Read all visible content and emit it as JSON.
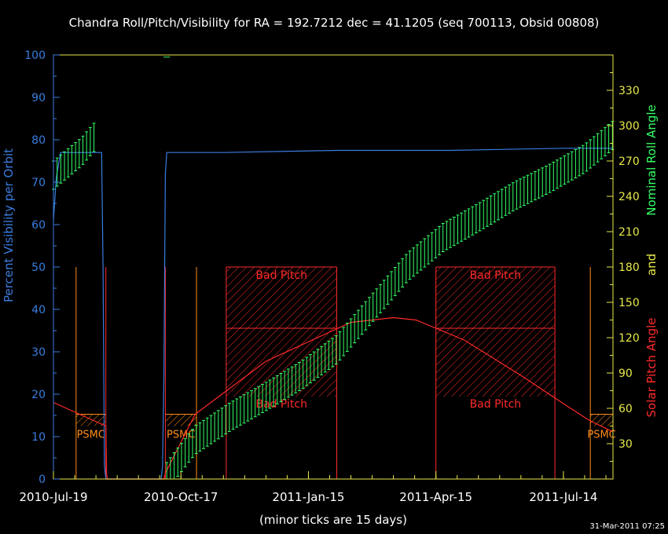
{
  "colors": {
    "background": "#000000",
    "visibility": "#3a7de0",
    "roll": "#33ff66",
    "pitch": "#ff2a2a",
    "psmc": "#ff8c1a",
    "axis_left": "#3a7de0",
    "axis_right": "#e8e84a",
    "title": "#ffffff"
  },
  "chart_data": {
    "type": "line",
    "title": "Chandra Roll/Pitch/Visibility for RA = 192.7212 dec = 41.1205 (seq 700113, Obsid 00808)",
    "xlabel": "(minor ticks are 15 days)",
    "ylabel_left": "Percent Visibility per Orbit",
    "ylabel_right_parts": [
      "Solar Pitch Angle",
      "and",
      "Nominal Roll Angle"
    ],
    "timestamp": "31-Mar-2011 07:25",
    "x_ticks": [
      "2010-Jul-19",
      "2010-Oct-17",
      "2011-Jan-15",
      "2011-Apr-15",
      "2011-Jul-14"
    ],
    "x_tick_days": [
      0,
      90,
      180,
      270,
      360
    ],
    "xlim_days": [
      0,
      395
    ],
    "left_axis": {
      "ylim": [
        0,
        100
      ],
      "ticks": [
        0,
        10,
        20,
        30,
        40,
        50,
        60,
        70,
        80,
        90,
        100
      ]
    },
    "right_axis": {
      "ylim": [
        0,
        360
      ],
      "ticks": [
        30,
        60,
        90,
        120,
        150,
        180,
        210,
        240,
        270,
        300,
        330
      ]
    },
    "region_labels": {
      "bad_pitch": "Bad Pitch",
      "psmc": "PSMC"
    },
    "series": [
      {
        "name": "Percent Visibility",
        "axis": "left",
        "x_days": [
          0,
          2,
          5,
          15,
          30,
          34,
          35,
          36,
          37,
          38,
          40,
          60,
          76,
          77,
          78,
          79,
          80,
          120,
          200,
          280,
          360,
          395
        ],
        "y": [
          61,
          71,
          77,
          77,
          77,
          77,
          50,
          3,
          0,
          0,
          0,
          0,
          0,
          3,
          25,
          72,
          77,
          77,
          77.5,
          77.5,
          78,
          78
        ]
      },
      {
        "name": "Solar Pitch Angle",
        "axis": "right",
        "x_days": [
          0,
          37,
          37.5,
          38,
          78,
          79,
          100,
          150,
          210,
          240,
          256,
          290,
          330,
          360,
          378,
          395
        ],
        "y": [
          65,
          45,
          5,
          0,
          0,
          5,
          55,
          100,
          133,
          137,
          135,
          118,
          88,
          64,
          50,
          40
        ]
      },
      {
        "name": "Nominal Roll Angle",
        "axis": "right",
        "x_days": [
          0,
          10,
          20,
          30,
          80,
          85,
          100,
          125,
          150,
          175,
          200,
          225,
          250,
          275,
          300,
          325,
          350,
          375,
          395
        ],
        "y": [
          258,
          268,
          278,
          292,
          2,
          10,
          33,
          53,
          70,
          88,
          110,
          145,
          180,
          205,
          222,
          240,
          255,
          272,
          292
        ],
        "error": 12
      }
    ],
    "bad_pitch_regions": [
      {
        "start": 122,
        "end": 200,
        "upper": [
          128,
          180
        ],
        "lower": [
          70,
          128
        ]
      },
      {
        "start": 270,
        "end": 354,
        "upper": [
          128,
          180
        ],
        "lower": [
          70,
          128
        ]
      }
    ],
    "psmc_regions": [
      {
        "start": 16,
        "end": 37,
        "band": [
          45,
          55
        ]
      },
      {
        "start": 79,
        "end": 101,
        "band": [
          45,
          55
        ]
      },
      {
        "start": 379,
        "end": 395,
        "band": [
          45,
          55
        ]
      }
    ],
    "pitch_limit_lines_days": [
      16,
      37,
      79,
      101,
      122,
      200,
      270,
      354,
      379
    ],
    "pitch_limit_line_top": 180
  }
}
